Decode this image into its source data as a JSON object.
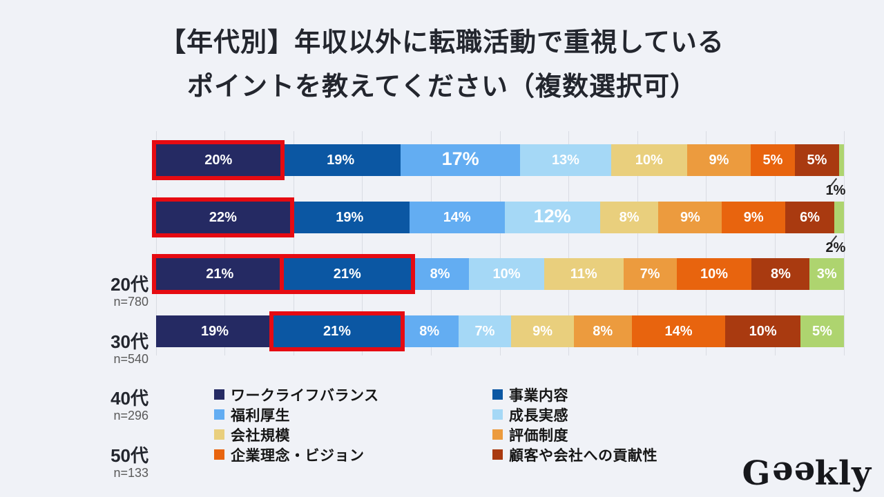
{
  "page": {
    "background": "#f0f2f7"
  },
  "title": {
    "line1": "【年代別】年収以外に転職活動で重視している",
    "line2": "ポイントを教えてください（複数選択可）"
  },
  "chart_data": {
    "type": "bar",
    "subtype": "horizontal-stacked",
    "unit": "%",
    "xlim": [
      0,
      100
    ],
    "gridlines_every_percent": 10,
    "grid_on": true,
    "legend_position": "bottom",
    "categories": [
      {
        "label": "20代",
        "n_label": "n=780"
      },
      {
        "label": "30代",
        "n_label": "n=540"
      },
      {
        "label": "40代",
        "n_label": "n=296"
      },
      {
        "label": "50代",
        "n_label": "n=133"
      }
    ],
    "series": [
      {
        "name": "ワークライフバランス",
        "color": "#252a63",
        "values": [
          20,
          22,
          21,
          19
        ]
      },
      {
        "name": "事業内容",
        "color": "#0b57a3",
        "values": [
          19,
          19,
          21,
          21
        ]
      },
      {
        "name": "福利厚生",
        "color": "#63adf2",
        "values": [
          17,
          14,
          8,
          8
        ]
      },
      {
        "name": "成長実感",
        "color": "#a5d8f6",
        "values": [
          13,
          12,
          10,
          7
        ]
      },
      {
        "name": "会社規模",
        "color": "#e9cf7d",
        "values": [
          10,
          8,
          11,
          9
        ]
      },
      {
        "name": "評価制度",
        "color": "#ec9b3e",
        "values": [
          9,
          9,
          7,
          8
        ]
      },
      {
        "name": "企業理念・ビジョン",
        "color": "#e8640e",
        "values": [
          5,
          9,
          10,
          14
        ]
      },
      {
        "name": "顧客や会社への貢献性",
        "color": "#a93a10",
        "values": [
          5,
          6,
          8,
          10
        ]
      },
      {
        "name": "",
        "color": "#aed46f",
        "values": [
          1,
          2,
          3,
          5
        ]
      }
    ],
    "highlighted_segments": [
      {
        "row": 0,
        "segment": 0
      },
      {
        "row": 1,
        "segment": 0
      },
      {
        "row": 2,
        "segment": 0
      },
      {
        "row": 2,
        "segment": 1
      },
      {
        "row": 3,
        "segment": 1
      }
    ],
    "outside_value_labels": [
      {
        "row": 0,
        "segment": 8,
        "label": "1%"
      },
      {
        "row": 1,
        "segment": 8,
        "label": "2%"
      }
    ],
    "large_value_labels": [
      {
        "row": 0,
        "segment": 2
      },
      {
        "row": 1,
        "segment": 3
      }
    ]
  },
  "legend": {
    "columns": [
      {
        "items": [
          {
            "label": "ワークライフバランス",
            "color": "#252a63"
          },
          {
            "label": "福利厚生",
            "color": "#63adf2"
          },
          {
            "label": "会社規模",
            "color": "#e9cf7d"
          },
          {
            "label": "企業理念・ビジョン",
            "color": "#e8640e"
          }
        ]
      },
      {
        "items": [
          {
            "label": "事業内容",
            "color": "#0b57a3"
          },
          {
            "label": "成長実感",
            "color": "#a5d8f6"
          },
          {
            "label": "評価制度",
            "color": "#ec9b3e"
          },
          {
            "label": "顧客や会社への貢献性",
            "color": "#a93a10"
          }
        ]
      }
    ]
  },
  "logo": {
    "name": "Geekly",
    "g": "G",
    "ee": "ee",
    "kly": "kly"
  },
  "colors": {
    "highlight_red": "#e60b12",
    "grid": "#d9dce3",
    "background": "#f0f2f7",
    "value_label": "#ffffff",
    "title_text": "#23262e",
    "n_label_text": "#595959"
  }
}
